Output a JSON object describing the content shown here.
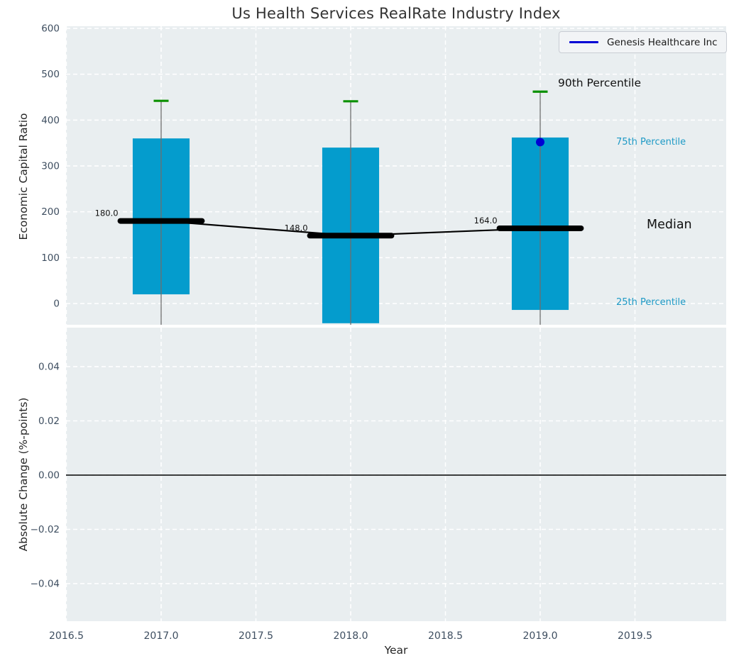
{
  "figure": {
    "title": "Us Health Services RealRate Industry Index"
  },
  "legend": {
    "label": "Genesis Healthcare Inc"
  },
  "annotations": {
    "p90": "90th Percentile",
    "p75": "75th Percentile",
    "median": "Median",
    "p25": "25th Percentile"
  },
  "chart_data": {
    "type": "boxplot-timeseries-with-line",
    "title": "Us Health Services RealRate Industry Index",
    "xlabel": "Year",
    "x_ticks": [
      2016.5,
      2017.0,
      2017.5,
      2018.0,
      2018.5,
      2019.0,
      2019.5
    ],
    "x_tick_labels": [
      "2016.5",
      "2017.0",
      "2017.5",
      "2018.0",
      "2018.5",
      "2019.0",
      "2019.5"
    ],
    "xlim": [
      2016.5,
      2019.98
    ],
    "grid": {
      "visible": true,
      "style": "dashed-white"
    },
    "legend_position": "upper right",
    "top_panel": {
      "ylabel": "Economic Capital Ratio",
      "yticks": [
        0,
        100,
        200,
        300,
        400,
        500,
        600
      ],
      "ytick_labels": [
        "0",
        "100",
        "200",
        "300",
        "400",
        "500",
        "600"
      ],
      "ylim": [
        -46,
        605
      ],
      "box_width_years": 0.3,
      "median_linewidth_years": 0.43,
      "boxes": [
        {
          "x": 2017,
          "q1": 20,
          "median": 180,
          "q3": 360,
          "p90": 442,
          "median_label": "180.0",
          "whisker_low_visible": false
        },
        {
          "x": 2018,
          "q1": -43,
          "median": 148,
          "q3": 340,
          "p90": 441,
          "median_label": "148.0",
          "whisker_low_visible": false
        },
        {
          "x": 2019,
          "q1": -14,
          "median": 164,
          "q3": 362,
          "p90": 462,
          "median_label": "164.0",
          "whisker_low_visible": false
        }
      ],
      "median_trend": [
        [
          2017,
          180
        ],
        [
          2018,
          148
        ],
        [
          2019,
          164
        ]
      ],
      "company_point": {
        "name": "Genesis Healthcare Inc",
        "x": 2019,
        "y": 352
      },
      "annotation_labels": [
        "90th Percentile",
        "75th Percentile",
        "Median",
        "25th Percentile"
      ]
    },
    "bottom_panel": {
      "ylabel": "Absolute Change (%-points)",
      "yticks": [
        0.04,
        0.02,
        0.0,
        -0.02,
        -0.04
      ],
      "ytick_labels": [
        "0.04",
        "0.02",
        "0.00",
        "−0.02",
        "−0.04"
      ],
      "ylim": [
        -0.054,
        0.054
      ],
      "zero_line": true,
      "series": []
    },
    "colors": {
      "box_fill": "#049ccd",
      "p90_cap": "#0a9000",
      "median_line": "#000000",
      "median_trend": "#000000",
      "whisker": "#6e6e6e",
      "company": "#0000d4",
      "percentile_text": "#1e9ac6",
      "axes_background": "#e9eef0",
      "gridline": "#ffffff",
      "tick_text": "#3e4e60",
      "zero_line": "#000000"
    }
  }
}
